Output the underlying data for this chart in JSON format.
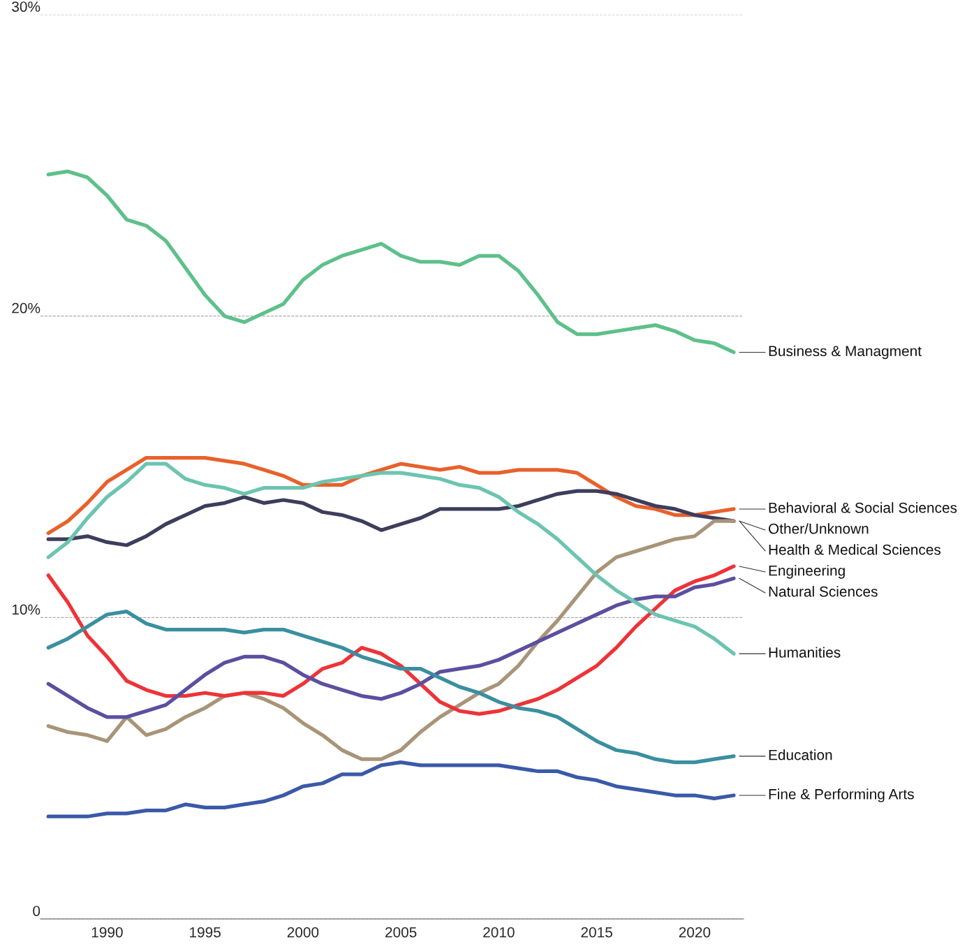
{
  "chart_data": {
    "type": "line",
    "x": [
      1987,
      1988,
      1989,
      1990,
      1991,
      1992,
      1993,
      1994,
      1995,
      1996,
      1997,
      1998,
      1999,
      2000,
      2001,
      2002,
      2003,
      2004,
      2005,
      2006,
      2007,
      2008,
      2009,
      2010,
      2011,
      2012,
      2013,
      2014,
      2015,
      2016,
      2017,
      2018,
      2019,
      2020,
      2021,
      2022
    ],
    "xlim": [
      1986.6,
      2022.5
    ],
    "xticks": [
      1990,
      1995,
      2000,
      2005,
      2010,
      2015,
      2020
    ],
    "ylim": [
      0,
      30
    ],
    "yticks": [
      0,
      {
        "value": 10,
        "label": "10%"
      },
      {
        "value": 20,
        "label": "20%"
      },
      {
        "value": 30,
        "label": "30%"
      }
    ],
    "grid": "y",
    "legend": false,
    "marker": "none",
    "line_style": "solid",
    "series": [
      {
        "name": "Business & Managment",
        "color": "#5ec08a",
        "values": [
          24.7,
          24.8,
          24.6,
          24.0,
          23.2,
          23.0,
          22.5,
          21.6,
          20.7,
          20.0,
          19.8,
          20.1,
          20.4,
          21.2,
          21.7,
          22.0,
          22.2,
          22.4,
          22.0,
          21.8,
          21.8,
          21.7,
          22.0,
          22.0,
          21.5,
          20.7,
          19.8,
          19.4,
          19.4,
          19.5,
          19.6,
          19.7,
          19.5,
          19.2,
          19.1,
          18.8
        ]
      },
      {
        "name": "Behavioral & Social Sciences",
        "color": "#e8612c",
        "values": [
          12.8,
          13.2,
          13.8,
          14.5,
          14.9,
          15.3,
          15.3,
          15.3,
          15.3,
          15.2,
          15.1,
          14.9,
          14.7,
          14.4,
          14.4,
          14.4,
          14.7,
          14.9,
          15.1,
          15.0,
          14.9,
          15.0,
          14.8,
          14.8,
          14.9,
          14.9,
          14.9,
          14.8,
          14.4,
          14.0,
          13.7,
          13.6,
          13.4,
          13.4,
          13.5,
          13.6
        ]
      },
      {
        "name": "Other/Unknown",
        "color": "#3d3d5c",
        "values": [
          12.6,
          12.6,
          12.7,
          12.5,
          12.4,
          12.7,
          13.1,
          13.4,
          13.7,
          13.8,
          14.0,
          13.8,
          13.9,
          13.8,
          13.5,
          13.4,
          13.2,
          12.9,
          13.1,
          13.3,
          13.6,
          13.6,
          13.6,
          13.6,
          13.7,
          13.9,
          14.1,
          14.2,
          14.2,
          14.1,
          13.9,
          13.7,
          13.6,
          13.4,
          13.3,
          13.2
        ]
      },
      {
        "name": "Health & Medical Sciences",
        "color": "#a89478",
        "values": [
          6.4,
          6.2,
          6.1,
          5.9,
          6.7,
          6.1,
          6.3,
          6.7,
          7.0,
          7.4,
          7.5,
          7.3,
          7.0,
          6.5,
          6.1,
          5.6,
          5.3,
          5.3,
          5.6,
          6.2,
          6.7,
          7.1,
          7.5,
          7.8,
          8.4,
          9.2,
          9.9,
          10.7,
          11.5,
          12.0,
          12.2,
          12.4,
          12.6,
          12.7,
          13.2,
          13.2
        ]
      },
      {
        "name": "Engineering",
        "color": "#ee3338",
        "values": [
          11.4,
          10.5,
          9.4,
          8.7,
          7.9,
          7.6,
          7.4,
          7.4,
          7.5,
          7.4,
          7.5,
          7.5,
          7.4,
          7.8,
          8.3,
          8.5,
          9.0,
          8.8,
          8.4,
          7.8,
          7.2,
          6.9,
          6.8,
          6.9,
          7.1,
          7.3,
          7.6,
          8.0,
          8.4,
          9.0,
          9.7,
          10.3,
          10.9,
          11.2,
          11.4,
          11.7
        ]
      },
      {
        "name": "Natural Sciences",
        "color": "#5b4fa0",
        "values": [
          7.8,
          7.4,
          7.0,
          6.7,
          6.7,
          6.9,
          7.1,
          7.6,
          8.1,
          8.5,
          8.7,
          8.7,
          8.5,
          8.1,
          7.8,
          7.6,
          7.4,
          7.3,
          7.5,
          7.8,
          8.2,
          8.3,
          8.4,
          8.6,
          8.9,
          9.2,
          9.5,
          9.8,
          10.1,
          10.4,
          10.6,
          10.7,
          10.7,
          11.0,
          11.1,
          11.3
        ]
      },
      {
        "name": "Humanities",
        "color": "#6cc4b0",
        "values": [
          12.0,
          12.5,
          13.3,
          14.0,
          14.5,
          15.1,
          15.1,
          14.6,
          14.4,
          14.3,
          14.1,
          14.3,
          14.3,
          14.3,
          14.5,
          14.6,
          14.7,
          14.8,
          14.8,
          14.7,
          14.6,
          14.4,
          14.3,
          14.0,
          13.5,
          13.1,
          12.6,
          12.0,
          11.4,
          10.9,
          10.5,
          10.1,
          9.9,
          9.7,
          9.3,
          8.8
        ]
      },
      {
        "name": "Education",
        "color": "#3a8fa0",
        "values": [
          9.0,
          9.3,
          9.7,
          10.1,
          10.2,
          9.8,
          9.6,
          9.6,
          9.6,
          9.6,
          9.5,
          9.6,
          9.6,
          9.4,
          9.2,
          9.0,
          8.7,
          8.5,
          8.3,
          8.3,
          8.0,
          7.7,
          7.5,
          7.2,
          7.0,
          6.9,
          6.7,
          6.3,
          5.9,
          5.6,
          5.5,
          5.3,
          5.2,
          5.2,
          5.3,
          5.4
        ]
      },
      {
        "name": "Fine & Performing Arts",
        "color": "#3a5aa8",
        "values": [
          3.4,
          3.4,
          3.4,
          3.5,
          3.5,
          3.6,
          3.6,
          3.8,
          3.7,
          3.7,
          3.8,
          3.9,
          4.1,
          4.4,
          4.5,
          4.8,
          4.8,
          5.1,
          5.2,
          5.1,
          5.1,
          5.1,
          5.1,
          5.1,
          5.0,
          4.9,
          4.9,
          4.7,
          4.6,
          4.4,
          4.3,
          4.2,
          4.1,
          4.1,
          4.0,
          4.1
        ]
      }
    ]
  }
}
